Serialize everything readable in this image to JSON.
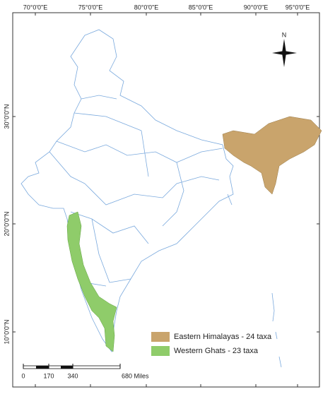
{
  "map": {
    "top_labels": [
      "70°0'0\"E",
      "75°0'0\"E",
      "80°0'0\"E",
      "85°0'0\"E",
      "90°0'0\"E",
      "95°0'0\"E"
    ],
    "left_labels": [
      "30°0'0\"N",
      "20°0'0\"N",
      "10°0'0\"N"
    ],
    "north": "N",
    "legend": [
      {
        "label": "Eastern Himalayas - 24 taxa",
        "color": "#c9a46c"
      },
      {
        "label": "Western Ghats - 23 taxa",
        "color": "#8fcc6a"
      }
    ],
    "scale_labels": [
      "0",
      "170",
      "340",
      "680 Miles"
    ]
  }
}
